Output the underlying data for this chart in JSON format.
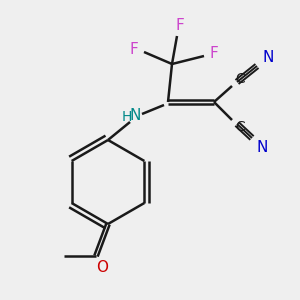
{
  "background_color": "#efefef",
  "bond_color": "#1a1a1a",
  "F_color": "#cc44cc",
  "N_color": "#0000cc",
  "O_color": "#cc0000",
  "C_color": "#1a1a1a",
  "NH_color": "#008888",
  "fig_w": 3.0,
  "fig_h": 3.0,
  "dpi": 100,
  "xlim": [
    0,
    300
  ],
  "ylim": [
    0,
    300
  ]
}
